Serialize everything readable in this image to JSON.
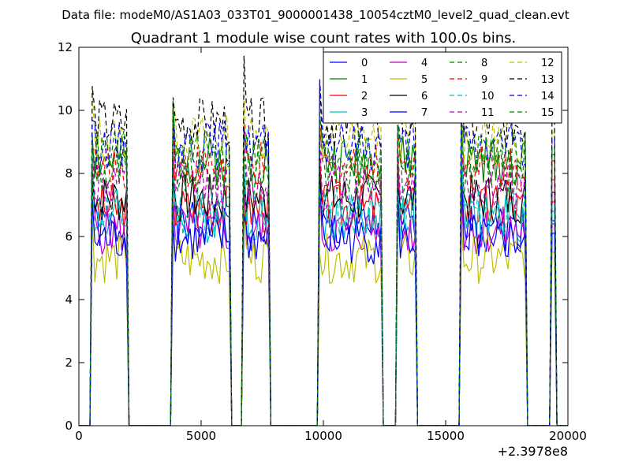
{
  "suptitle": "Data file: modeM0/AS1A03_033T01_9000001438_10054cztM0_level2_quad_clean.evt",
  "chart_data": {
    "type": "line",
    "title": "Quadrant 1 module wise count rates with 100.0s bins.",
    "xlabel": "",
    "ylabel": "",
    "xlim": [
      0,
      20000
    ],
    "ylim": [
      0,
      12
    ],
    "x_offset_label": "+2.3978e8",
    "xticks": [
      0,
      5000,
      10000,
      15000,
      20000
    ],
    "xtick_labels": [
      "0",
      "5000",
      "10000",
      "15000",
      "20000"
    ],
    "yticks": [
      0,
      2,
      4,
      6,
      8,
      10,
      12
    ],
    "ytick_labels": [
      "0",
      "2",
      "4",
      "6",
      "8",
      "10",
      "12"
    ],
    "grid": false,
    "legend_position": "top-right",
    "legend_columns": 4,
    "bin_seconds": 100,
    "segments": [
      {
        "start": 550,
        "end": 1950
      },
      {
        "start": 3850,
        "end": 6150
      },
      {
        "start": 6750,
        "end": 7750
      },
      {
        "start": 9850,
        "end": 12350
      },
      {
        "start": 13050,
        "end": 13750
      },
      {
        "start": 15650,
        "end": 18250
      },
      {
        "start": 19350,
        "end": 19450
      }
    ],
    "series": [
      {
        "name": "0",
        "color": "#0000ff",
        "dash": "solid",
        "mean": 6.3,
        "seed": 1
      },
      {
        "name": "1",
        "color": "#008000",
        "dash": "solid",
        "mean": 8.4,
        "seed": 2
      },
      {
        "name": "2",
        "color": "#ff0000",
        "dash": "solid",
        "mean": 6.9,
        "seed": 3
      },
      {
        "name": "3",
        "color": "#00bfbf",
        "dash": "solid",
        "mean": 6.6,
        "seed": 4
      },
      {
        "name": "4",
        "color": "#bf00bf",
        "dash": "solid",
        "mean": 6.2,
        "seed": 5
      },
      {
        "name": "5",
        "color": "#bfbf00",
        "dash": "solid",
        "mean": 5.3,
        "seed": 6
      },
      {
        "name": "6",
        "color": "#000000",
        "dash": "solid",
        "mean": 7.2,
        "seed": 7
      },
      {
        "name": "7",
        "color": "#0000ff",
        "dash": "solid",
        "mean": 5.9,
        "seed": 8
      },
      {
        "name": "8",
        "color": "#008000",
        "dash": "dashed",
        "mean": 8.0,
        "seed": 9
      },
      {
        "name": "9",
        "color": "#ff0000",
        "dash": "dashed",
        "mean": 8.2,
        "seed": 10
      },
      {
        "name": "10",
        "color": "#00bfbf",
        "dash": "dashed",
        "mean": 6.8,
        "seed": 11
      },
      {
        "name": "11",
        "color": "#bf00bf",
        "dash": "dashed",
        "mean": 7.6,
        "seed": 12
      },
      {
        "name": "12",
        "color": "#bfbf00",
        "dash": "dashed",
        "mean": 9.1,
        "seed": 13
      },
      {
        "name": "13",
        "color": "#000000",
        "dash": "dashed",
        "mean": 9.6,
        "seed": 14
      },
      {
        "name": "14",
        "color": "#0000ff",
        "dash": "dashed",
        "mean": 8.9,
        "seed": 15
      },
      {
        "name": "15",
        "color": "#008000",
        "dash": "dashed",
        "mean": 8.6,
        "seed": 16
      }
    ]
  }
}
